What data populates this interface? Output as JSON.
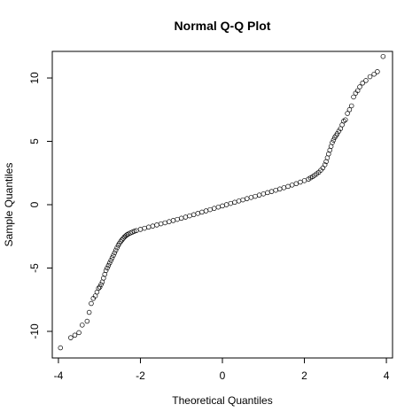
{
  "chart_data": {
    "type": "scatter",
    "title": "Normal Q-Q Plot",
    "xlabel": "Theoretical Quantiles",
    "ylabel": "Sample Quantiles",
    "xlim": [
      -4.15,
      4.15
    ],
    "ylim": [
      -12.1,
      12.1
    ],
    "xticks": [
      -4,
      -2,
      0,
      2,
      4
    ],
    "xtick_labels": [
      "-4",
      "-2",
      "0",
      "2",
      "4"
    ],
    "yticks": [
      -10,
      -5,
      0,
      5,
      10
    ],
    "ytick_labels": [
      "-10",
      "-5",
      "0",
      "5",
      "10"
    ],
    "grid": false,
    "marker": "open-circle",
    "points": [
      [
        -3.95,
        -11.3
      ],
      [
        -3.7,
        -10.5
      ],
      [
        -3.6,
        -10.3
      ],
      [
        -3.5,
        -10.1
      ],
      [
        -3.42,
        -9.5
      ],
      [
        -3.3,
        -9.2
      ],
      [
        -3.25,
        -8.5
      ],
      [
        -3.2,
        -7.8
      ],
      [
        -3.15,
        -7.4
      ],
      [
        -3.1,
        -7.2
      ],
      [
        -3.06,
        -6.9
      ],
      [
        -3.02,
        -6.6
      ],
      [
        -2.99,
        -6.5
      ],
      [
        -2.96,
        -6.3
      ],
      [
        -2.93,
        -6.1
      ],
      [
        -2.9,
        -5.8
      ],
      [
        -2.87,
        -5.5
      ],
      [
        -2.84,
        -5.2
      ],
      [
        -2.81,
        -5.0
      ],
      [
        -2.78,
        -4.8
      ],
      [
        -2.75,
        -4.6
      ],
      [
        -2.72,
        -4.4
      ],
      [
        -2.69,
        -4.2
      ],
      [
        -2.66,
        -4.0
      ],
      [
        -2.63,
        -3.8
      ],
      [
        -2.6,
        -3.6
      ],
      [
        -2.57,
        -3.4
      ],
      [
        -2.54,
        -3.2
      ],
      [
        -2.51,
        -3.05
      ],
      [
        -2.48,
        -2.9
      ],
      [
        -2.45,
        -2.78
      ],
      [
        -2.42,
        -2.66
      ],
      [
        -2.39,
        -2.55
      ],
      [
        -2.36,
        -2.46
      ],
      [
        -2.33,
        -2.38
      ],
      [
        -2.3,
        -2.32
      ],
      [
        -2.25,
        -2.24
      ],
      [
        -2.2,
        -2.17
      ],
      [
        -2.15,
        -2.1
      ],
      [
        -2.1,
        -2.05
      ],
      [
        -2.0,
        -1.95
      ],
      [
        -1.9,
        -1.86
      ],
      [
        -1.8,
        -1.77
      ],
      [
        -1.7,
        -1.69
      ],
      [
        -1.6,
        -1.6
      ],
      [
        -1.5,
        -1.51
      ],
      [
        -1.4,
        -1.43
      ],
      [
        -1.3,
        -1.34
      ],
      [
        -1.2,
        -1.25
      ],
      [
        -1.1,
        -1.16
      ],
      [
        -1.0,
        -1.07
      ],
      [
        -0.9,
        -0.98
      ],
      [
        -0.8,
        -0.88
      ],
      [
        -0.7,
        -0.79
      ],
      [
        -0.6,
        -0.69
      ],
      [
        -0.5,
        -0.59
      ],
      [
        -0.4,
        -0.49
      ],
      [
        -0.3,
        -0.39
      ],
      [
        -0.2,
        -0.29
      ],
      [
        -0.1,
        -0.19
      ],
      [
        0.0,
        -0.1
      ],
      [
        0.1,
        0.0
      ],
      [
        0.2,
        0.1
      ],
      [
        0.3,
        0.19
      ],
      [
        0.4,
        0.29
      ],
      [
        0.5,
        0.38
      ],
      [
        0.6,
        0.48
      ],
      [
        0.7,
        0.57
      ],
      [
        0.8,
        0.66
      ],
      [
        0.9,
        0.76
      ],
      [
        1.0,
        0.85
      ],
      [
        1.1,
        0.95
      ],
      [
        1.2,
        1.04
      ],
      [
        1.3,
        1.14
      ],
      [
        1.4,
        1.24
      ],
      [
        1.5,
        1.34
      ],
      [
        1.6,
        1.44
      ],
      [
        1.7,
        1.55
      ],
      [
        1.8,
        1.66
      ],
      [
        1.9,
        1.78
      ],
      [
        2.0,
        1.9
      ],
      [
        2.1,
        2.02
      ],
      [
        2.15,
        2.12
      ],
      [
        2.2,
        2.22
      ],
      [
        2.25,
        2.32
      ],
      [
        2.3,
        2.44
      ],
      [
        2.35,
        2.56
      ],
      [
        2.4,
        2.72
      ],
      [
        2.45,
        2.9
      ],
      [
        2.5,
        3.15
      ],
      [
        2.53,
        3.4
      ],
      [
        2.56,
        3.7
      ],
      [
        2.59,
        4.0
      ],
      [
        2.62,
        4.3
      ],
      [
        2.65,
        4.6
      ],
      [
        2.68,
        4.9
      ],
      [
        2.71,
        5.1
      ],
      [
        2.74,
        5.3
      ],
      [
        2.77,
        5.45
      ],
      [
        2.8,
        5.6
      ],
      [
        2.84,
        5.8
      ],
      [
        2.88,
        6.0
      ],
      [
        2.92,
        6.3
      ],
      [
        2.96,
        6.6
      ],
      [
        3.0,
        6.7
      ],
      [
        3.05,
        7.2
      ],
      [
        3.1,
        7.5
      ],
      [
        3.15,
        7.8
      ],
      [
        3.2,
        8.5
      ],
      [
        3.25,
        8.8
      ],
      [
        3.3,
        9.0
      ],
      [
        3.35,
        9.3
      ],
      [
        3.42,
        9.6
      ],
      [
        3.5,
        9.8
      ],
      [
        3.6,
        10.1
      ],
      [
        3.7,
        10.3
      ],
      [
        3.78,
        10.5
      ],
      [
        3.92,
        11.7
      ]
    ]
  }
}
